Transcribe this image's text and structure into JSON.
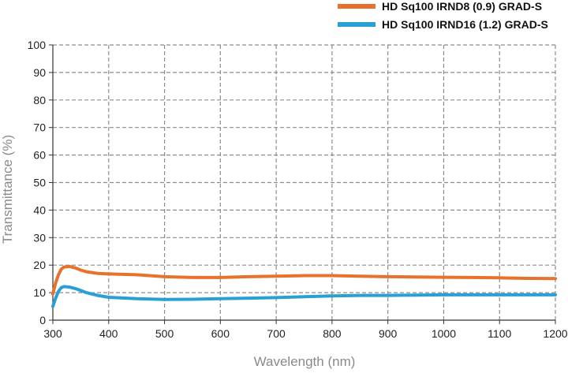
{
  "chart_data": {
    "type": "line",
    "title": "",
    "xlabel": "Wavelength (nm)",
    "ylabel": "Transmittance (%)",
    "xlim": [
      300,
      1200
    ],
    "ylim": [
      0,
      100
    ],
    "x_ticks": [
      300,
      400,
      500,
      600,
      700,
      800,
      900,
      1000,
      1100,
      1200
    ],
    "y_ticks": [
      0,
      10,
      20,
      30,
      40,
      50,
      60,
      70,
      80,
      90,
      100
    ],
    "grid": true,
    "legend_position": "top-right",
    "series": [
      {
        "name": "HD Sq100 IRND8 (0.9) GRAD-S",
        "color": "#e8722b",
        "x": [
          300,
          305,
          310,
          315,
          320,
          330,
          340,
          350,
          360,
          380,
          400,
          450,
          500,
          550,
          600,
          650,
          700,
          750,
          800,
          850,
          900,
          950,
          1000,
          1050,
          1100,
          1150,
          1200
        ],
        "y": [
          9.5,
          13.5,
          16.5,
          18.5,
          19.3,
          19.5,
          19.0,
          18.2,
          17.6,
          17.0,
          16.8,
          16.5,
          15.8,
          15.5,
          15.5,
          15.8,
          16.0,
          16.2,
          16.2,
          16.0,
          15.8,
          15.7,
          15.6,
          15.5,
          15.4,
          15.2,
          15.1
        ]
      },
      {
        "name": "HD Sq100 IRND16 (1.2) GRAD-S",
        "color": "#2a9fd6",
        "x": [
          300,
          305,
          310,
          315,
          320,
          330,
          340,
          350,
          360,
          380,
          400,
          450,
          500,
          550,
          600,
          650,
          700,
          750,
          800,
          850,
          900,
          950,
          1000,
          1050,
          1100,
          1150,
          1200
        ],
        "y": [
          5.0,
          8.0,
          10.5,
          11.8,
          12.2,
          12.0,
          11.5,
          10.8,
          10.0,
          9.0,
          8.3,
          7.8,
          7.5,
          7.6,
          7.8,
          8.0,
          8.2,
          8.5,
          8.8,
          9.0,
          9.0,
          9.1,
          9.2,
          9.2,
          9.2,
          9.2,
          9.2
        ]
      }
    ]
  }
}
